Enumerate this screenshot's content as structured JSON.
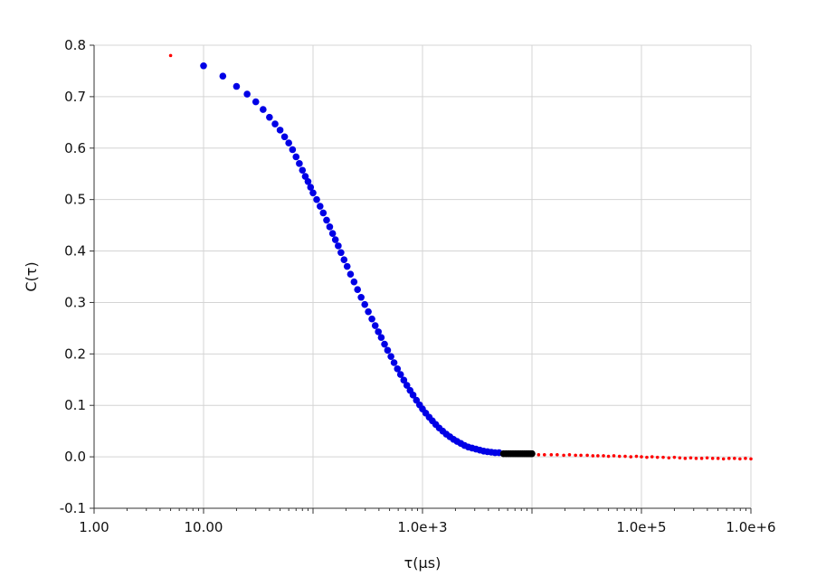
{
  "chart_data": {
    "type": "scatter",
    "xlabel": "τ(μs)",
    "ylabel": "C(τ)",
    "x_scale": "log",
    "xlim": [
      1,
      1000000
    ],
    "ylim": [
      -0.1,
      0.8
    ],
    "grid": true,
    "x_ticks": [
      {
        "value": 1,
        "label": "1.00"
      },
      {
        "value": 10,
        "label": "10.00"
      },
      {
        "value": 100,
        "label": ""
      },
      {
        "value": 1000,
        "label": "1.0e+3"
      },
      {
        "value": 10000,
        "label": ""
      },
      {
        "value": 100000,
        "label": "1.0e+5"
      },
      {
        "value": 1000000,
        "label": "1.0e+6"
      }
    ],
    "y_ticks": [
      {
        "value": 0.8,
        "label": "0.8"
      },
      {
        "value": 0.7,
        "label": "0.7"
      },
      {
        "value": 0.6,
        "label": "0.6"
      },
      {
        "value": 0.5,
        "label": "0.5"
      },
      {
        "value": 0.4,
        "label": "0.4"
      },
      {
        "value": 0.3,
        "label": "0.3"
      },
      {
        "value": 0.2,
        "label": "0.2"
      },
      {
        "value": 0.1,
        "label": "0.1"
      },
      {
        "value": 0.0,
        "label": "0.0"
      },
      {
        "value": -0.1,
        "label": "-0.1"
      }
    ],
    "series": [
      {
        "color": "#ff0000",
        "marker": "small-dot",
        "points": [
          [
            5,
            0.78
          ],
          [
            4500,
            0.006
          ],
          [
            5200,
            0.006
          ],
          [
            6000,
            0.005
          ],
          [
            7000,
            0.005
          ],
          [
            8000,
            0.005
          ],
          [
            9000,
            0.005
          ],
          [
            10000,
            0.004
          ],
          [
            11500,
            0.004
          ],
          [
            13000,
            0.004
          ],
          [
            15000,
            0.004
          ],
          [
            17000,
            0.004
          ],
          [
            19500,
            0.003
          ],
          [
            22000,
            0.004
          ],
          [
            25000,
            0.003
          ],
          [
            28000,
            0.003
          ],
          [
            32000,
            0.003
          ],
          [
            36000,
            0.002
          ],
          [
            40000,
            0.002
          ],
          [
            45000,
            0.002
          ],
          [
            50000,
            0.001
          ],
          [
            56000,
            0.002
          ],
          [
            63000,
            0.001
          ],
          [
            71000,
            0.001
          ],
          [
            80000,
            0.0
          ],
          [
            90000,
            0.001
          ],
          [
            100000,
            0.0
          ],
          [
            112000,
            -0.001
          ],
          [
            125000,
            0.0
          ],
          [
            140000,
            -0.001
          ],
          [
            158000,
            -0.001
          ],
          [
            178000,
            -0.002
          ],
          [
            200000,
            -0.001
          ],
          [
            224000,
            -0.002
          ],
          [
            251000,
            -0.003
          ],
          [
            282000,
            -0.002
          ],
          [
            316000,
            -0.003
          ],
          [
            355000,
            -0.003
          ],
          [
            398000,
            -0.002
          ],
          [
            447000,
            -0.003
          ],
          [
            501000,
            -0.003
          ],
          [
            562000,
            -0.004
          ],
          [
            631000,
            -0.003
          ],
          [
            708000,
            -0.003
          ],
          [
            794000,
            -0.004
          ],
          [
            891000,
            -0.003
          ],
          [
            1000000,
            -0.004
          ]
        ]
      },
      {
        "color": "#0000e6",
        "marker": "dot",
        "points": [
          [
            10,
            0.76
          ],
          [
            15,
            0.74
          ],
          [
            20,
            0.72
          ],
          [
            25,
            0.705
          ],
          [
            30,
            0.69
          ],
          [
            35,
            0.675
          ],
          [
            40,
            0.66
          ],
          [
            45,
            0.647
          ],
          [
            50,
            0.635
          ],
          [
            55,
            0.622
          ],
          [
            60,
            0.61
          ],
          [
            65,
            0.597
          ],
          [
            70,
            0.583
          ],
          [
            75,
            0.57
          ],
          [
            80,
            0.557
          ],
          [
            85,
            0.545
          ],
          [
            90,
            0.535
          ],
          [
            95,
            0.524
          ],
          [
            100,
            0.513
          ],
          [
            108,
            0.5
          ],
          [
            116,
            0.487
          ],
          [
            124,
            0.474
          ],
          [
            133,
            0.46
          ],
          [
            142,
            0.447
          ],
          [
            151,
            0.434
          ],
          [
            160,
            0.422
          ],
          [
            170,
            0.41
          ],
          [
            180,
            0.397
          ],
          [
            192,
            0.383
          ],
          [
            205,
            0.37
          ],
          [
            220,
            0.355
          ],
          [
            237,
            0.34
          ],
          [
            255,
            0.325
          ],
          [
            275,
            0.31
          ],
          [
            297,
            0.296
          ],
          [
            320,
            0.282
          ],
          [
            345,
            0.268
          ],
          [
            370,
            0.255
          ],
          [
            395,
            0.243
          ],
          [
            420,
            0.232
          ],
          [
            450,
            0.219
          ],
          [
            480,
            0.207
          ],
          [
            515,
            0.195
          ],
          [
            550,
            0.183
          ],
          [
            590,
            0.171
          ],
          [
            630,
            0.16
          ],
          [
            675,
            0.149
          ],
          [
            720,
            0.139
          ],
          [
            770,
            0.129
          ],
          [
            820,
            0.12
          ],
          [
            880,
            0.11
          ],
          [
            940,
            0.101
          ],
          [
            1000,
            0.093
          ],
          [
            1070,
            0.085
          ],
          [
            1150,
            0.077
          ],
          [
            1230,
            0.07
          ],
          [
            1320,
            0.063
          ],
          [
            1420,
            0.056
          ],
          [
            1530,
            0.05
          ],
          [
            1650,
            0.044
          ],
          [
            1780,
            0.039
          ],
          [
            1920,
            0.034
          ],
          [
            2070,
            0.03
          ],
          [
            2240,
            0.026
          ],
          [
            2420,
            0.022
          ],
          [
            2620,
            0.019
          ],
          [
            2840,
            0.017
          ],
          [
            3080,
            0.015
          ],
          [
            3340,
            0.013
          ],
          [
            3620,
            0.011
          ],
          [
            3920,
            0.01
          ],
          [
            4250,
            0.009
          ],
          [
            4600,
            0.008
          ],
          [
            5000,
            0.008
          ]
        ]
      },
      {
        "color": "#000000",
        "marker": "dot",
        "points": [
          [
            5500,
            0.006
          ],
          [
            5800,
            0.006
          ],
          [
            6100,
            0.006
          ],
          [
            6400,
            0.006
          ],
          [
            6700,
            0.006
          ],
          [
            7000,
            0.006
          ],
          [
            7300,
            0.006
          ],
          [
            7600,
            0.006
          ],
          [
            7900,
            0.006
          ],
          [
            8200,
            0.006
          ],
          [
            8500,
            0.006
          ],
          [
            8800,
            0.006
          ],
          [
            9100,
            0.006
          ],
          [
            9400,
            0.006
          ],
          [
            9700,
            0.006
          ],
          [
            10000,
            0.006
          ]
        ]
      }
    ]
  }
}
